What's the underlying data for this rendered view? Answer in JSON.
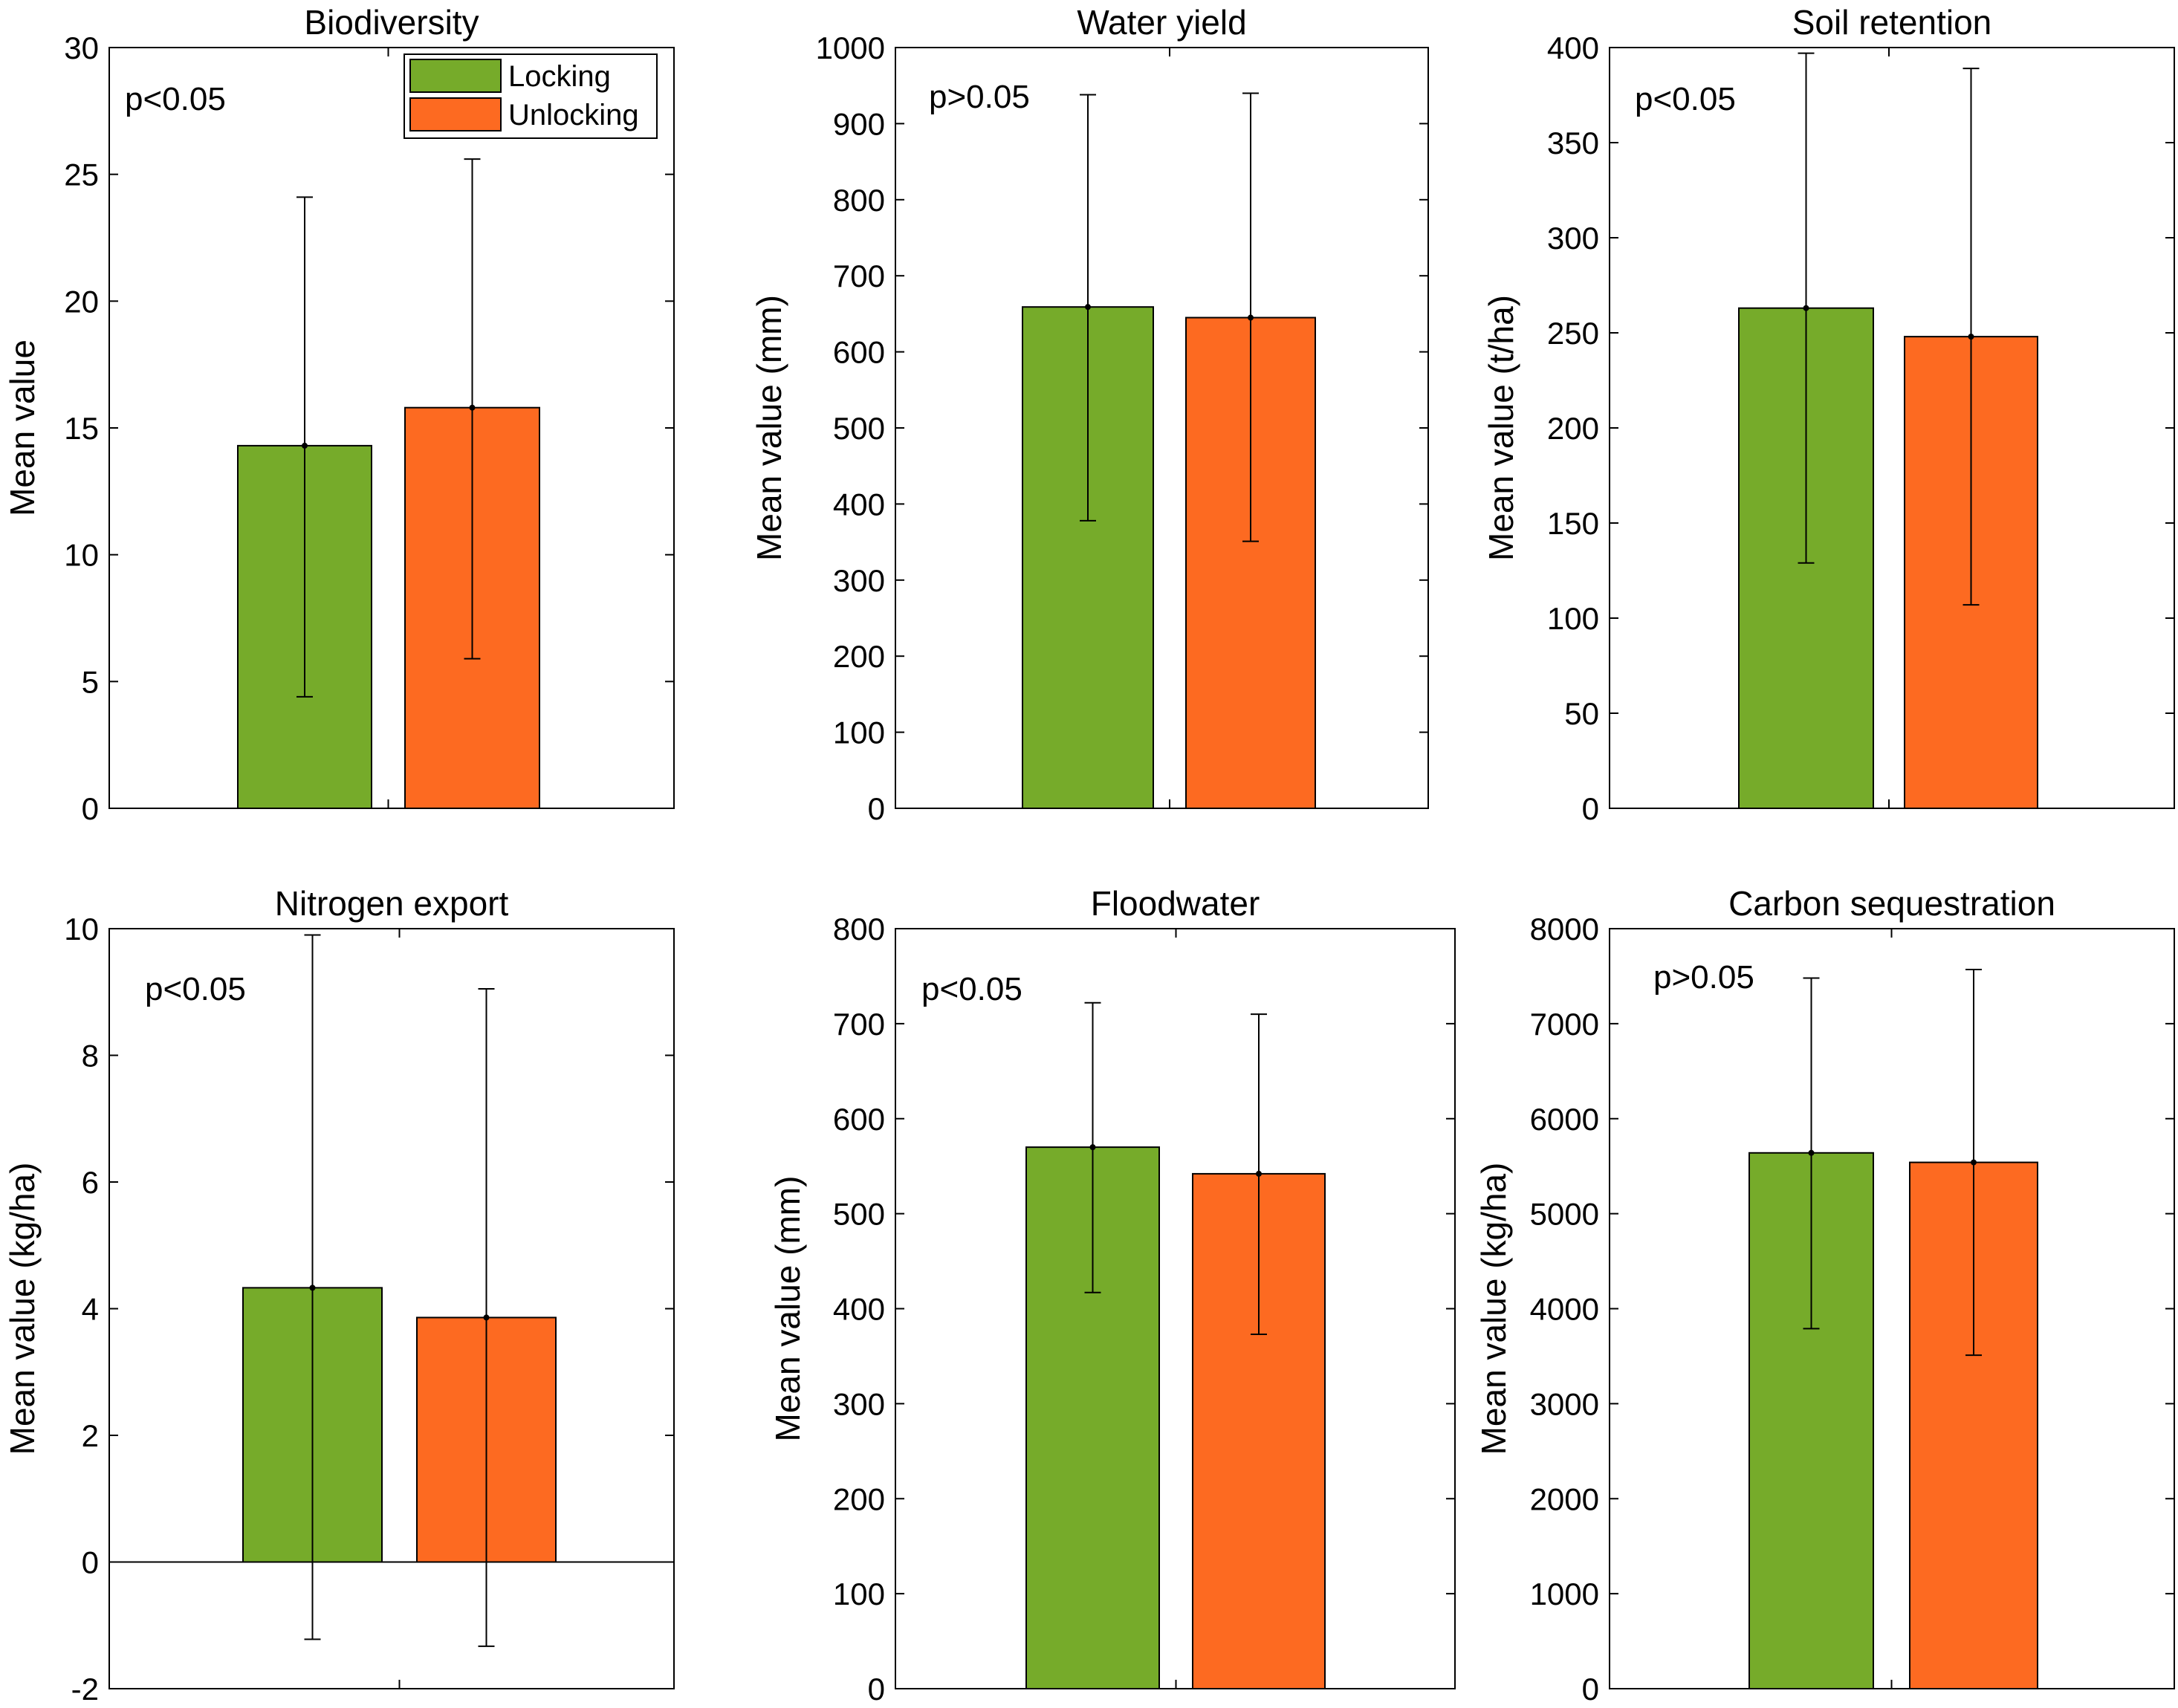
{
  "colors": {
    "locking": "#76ab2a",
    "unlocking": "#fd6a21",
    "axis": "#000000"
  },
  "legend": {
    "items": [
      {
        "label": "Locking",
        "color": "#76ab2a"
      },
      {
        "label": "Unlocking",
        "color": "#fd6a21"
      }
    ]
  },
  "chart_data": [
    {
      "type": "bar",
      "title": "Biodiversity",
      "ylabel": "Mean value",
      "ylim": [
        0,
        30
      ],
      "yticks": [
        0,
        5,
        10,
        15,
        20,
        25,
        30
      ],
      "annotation": "p<0.05",
      "series": [
        {
          "name": "Locking",
          "value": 14.3,
          "error_low": 4.4,
          "error_high": 24.1
        },
        {
          "name": "Unlocking",
          "value": 15.8,
          "error_low": 5.9,
          "error_high": 25.6
        }
      ]
    },
    {
      "type": "bar",
      "title": "Water yield",
      "ylabel": "Mean value (mm)",
      "ylim": [
        0,
        1000
      ],
      "yticks": [
        0,
        100,
        200,
        300,
        400,
        500,
        600,
        700,
        800,
        900,
        1000
      ],
      "annotation": "p>0.05",
      "series": [
        {
          "name": "Locking",
          "value": 659,
          "error_low": 378,
          "error_high": 938
        },
        {
          "name": "Unlocking",
          "value": 645,
          "error_low": 351,
          "error_high": 940
        }
      ]
    },
    {
      "type": "bar",
      "title": "Soil retention",
      "ylabel": "Mean value (t/ha)",
      "ylim": [
        0,
        400
      ],
      "yticks": [
        0,
        50,
        100,
        150,
        200,
        250,
        300,
        350,
        400
      ],
      "annotation": "p<0.05",
      "series": [
        {
          "name": "Locking",
          "value": 263,
          "error_low": 129,
          "error_high": 397
        },
        {
          "name": "Unlocking",
          "value": 248,
          "error_low": 107,
          "error_high": 389
        }
      ]
    },
    {
      "type": "bar",
      "title": "Nitrogen export",
      "ylabel": "Mean value (kg/ha)",
      "ylim": [
        -2,
        10
      ],
      "yticks": [
        -2,
        0,
        2,
        4,
        6,
        8,
        10
      ],
      "annotation": "p<0.05",
      "series": [
        {
          "name": "Locking",
          "value": 4.33,
          "error_low": -1.22,
          "error_high": 9.9
        },
        {
          "name": "Unlocking",
          "value": 3.86,
          "error_low": -1.33,
          "error_high": 9.05
        }
      ]
    },
    {
      "type": "bar",
      "title": "Floodwater",
      "ylabel": "Mean value (mm)",
      "ylim": [
        0,
        800
      ],
      "yticks": [
        0,
        100,
        200,
        300,
        400,
        500,
        600,
        700,
        800
      ],
      "annotation": "p<0.05",
      "series": [
        {
          "name": "Locking",
          "value": 570,
          "error_low": 417,
          "error_high": 722
        },
        {
          "name": "Unlocking",
          "value": 542,
          "error_low": 373,
          "error_high": 710
        }
      ]
    },
    {
      "type": "bar",
      "title": "Carbon sequestration",
      "ylabel": "Mean value (kg/ha)",
      "ylim": [
        0,
        8000
      ],
      "yticks": [
        0,
        1000,
        2000,
        3000,
        4000,
        5000,
        6000,
        7000,
        8000
      ],
      "annotation": "p>0.05",
      "series": [
        {
          "name": "Locking",
          "value": 5640,
          "error_low": 3790,
          "error_high": 7480
        },
        {
          "name": "Unlocking",
          "value": 5540,
          "error_low": 3510,
          "error_high": 7570
        }
      ]
    }
  ]
}
